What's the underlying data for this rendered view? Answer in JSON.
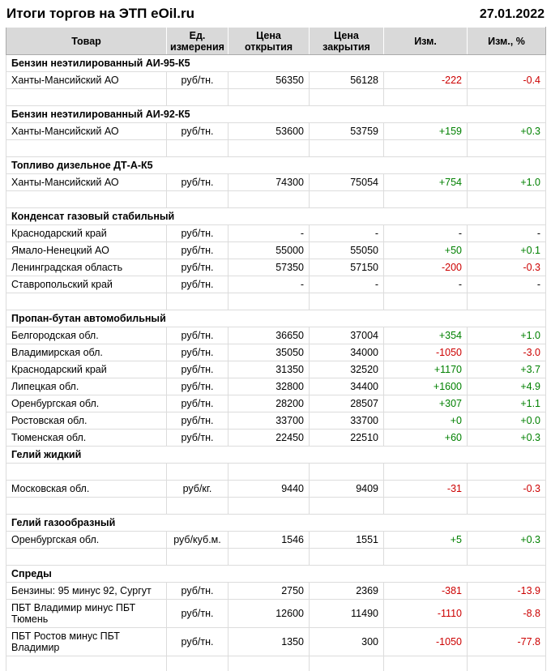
{
  "page": {
    "title": "Итоги торгов на ЭТП eOil.ru",
    "date": "27.01.2022"
  },
  "colors": {
    "positive": "#008000",
    "negative": "#cc0000",
    "header_bg": "#d9d9d9"
  },
  "table": {
    "columns": [
      "Товар",
      "Ед.\nизмерения",
      "Цена\nоткрытия",
      "Цена\nзакрытия",
      "Изм.",
      "Изм., %"
    ],
    "rows": [
      {
        "type": "section",
        "name": "Бензин неэтилированный АИ-95-К5"
      },
      {
        "type": "data",
        "product": "Ханты-Мансийский АО",
        "unit": "руб/тн.",
        "open": "56350",
        "close": "56128",
        "change": "-222",
        "change_pct": "-0.4",
        "direction": "negative"
      },
      {
        "type": "spacer"
      },
      {
        "type": "section",
        "name": "Бензин неэтилированный АИ-92-К5"
      },
      {
        "type": "data",
        "product": "Ханты-Мансийский АО",
        "unit": "руб/тн.",
        "open": "53600",
        "close": "53759",
        "change": "+159",
        "change_pct": "+0.3",
        "direction": "positive"
      },
      {
        "type": "spacer"
      },
      {
        "type": "section",
        "name": "Топливо дизельное ДТ-А-К5"
      },
      {
        "type": "data",
        "product": "Ханты-Мансийский АО",
        "unit": "руб/тн.",
        "open": "74300",
        "close": "75054",
        "change": "+754",
        "change_pct": "+1.0",
        "direction": "positive"
      },
      {
        "type": "spacer"
      },
      {
        "type": "section",
        "name": "Конденсат газовый стабильный"
      },
      {
        "type": "data",
        "product": "Краснодарский край",
        "unit": "руб/тн.",
        "open": "-",
        "close": "-",
        "change": "-",
        "change_pct": "-",
        "direction": "none"
      },
      {
        "type": "data",
        "product": "Ямало-Ненецкий АО",
        "unit": "руб/тн.",
        "open": "55000",
        "close": "55050",
        "change": "+50",
        "change_pct": "+0.1",
        "direction": "positive"
      },
      {
        "type": "data",
        "product": "Ленинградская область",
        "unit": "руб/тн.",
        "open": "57350",
        "close": "57150",
        "change": "-200",
        "change_pct": "-0.3",
        "direction": "negative"
      },
      {
        "type": "data",
        "product": "Ставропольский край",
        "unit": "руб/тн.",
        "open": "-",
        "close": "-",
        "change": "-",
        "change_pct": "-",
        "direction": "none"
      },
      {
        "type": "spacer"
      },
      {
        "type": "section",
        "name": "Пропан-бутан автомобильный"
      },
      {
        "type": "data",
        "product": "Белгородская обл.",
        "unit": "руб/тн.",
        "open": "36650",
        "close": "37004",
        "change": "+354",
        "change_pct": "+1.0",
        "direction": "positive"
      },
      {
        "type": "data",
        "product": "Владимирская обл.",
        "unit": "руб/тн.",
        "open": "35050",
        "close": "34000",
        "change": "-1050",
        "change_pct": "-3.0",
        "direction": "negative"
      },
      {
        "type": "data",
        "product": "Краснодарский край",
        "unit": "руб/тн.",
        "open": "31350",
        "close": "32520",
        "change": "+1170",
        "change_pct": "+3.7",
        "direction": "positive"
      },
      {
        "type": "data",
        "product": "Липецкая обл.",
        "unit": "руб/тн.",
        "open": "32800",
        "close": "34400",
        "change": "+1600",
        "change_pct": "+4.9",
        "direction": "positive"
      },
      {
        "type": "data",
        "product": "Оренбургская обл.",
        "unit": "руб/тн.",
        "open": "28200",
        "close": "28507",
        "change": "+307",
        "change_pct": "+1.1",
        "direction": "positive"
      },
      {
        "type": "data",
        "product": "Ростовская обл.",
        "unit": "руб/тн.",
        "open": "33700",
        "close": "33700",
        "change": "+0",
        "change_pct": "+0.0",
        "direction": "positive"
      },
      {
        "type": "data",
        "product": "Тюменская обл.",
        "unit": "руб/тн.",
        "open": "22450",
        "close": "22510",
        "change": "+60",
        "change_pct": "+0.3",
        "direction": "positive"
      },
      {
        "type": "section",
        "name": "Гелий жидкий"
      },
      {
        "type": "spacer"
      },
      {
        "type": "data",
        "product": "Московская обл.",
        "unit": "руб/кг.",
        "open": "9440",
        "close": "9409",
        "change": "-31",
        "change_pct": "-0.3",
        "direction": "negative"
      },
      {
        "type": "spacer"
      },
      {
        "type": "section",
        "name": "Гелий газообразный"
      },
      {
        "type": "data",
        "product": "Оренбургская обл.",
        "unit": "руб/куб.м.",
        "open": "1546",
        "close": "1551",
        "change": "+5",
        "change_pct": "+0.3",
        "direction": "positive"
      },
      {
        "type": "spacer"
      },
      {
        "type": "section",
        "name": "Спреды"
      },
      {
        "type": "data",
        "product": "Бензины: 95 минус 92, Сургут",
        "unit": "руб/тн.",
        "open": "2750",
        "close": "2369",
        "change": "-381",
        "change_pct": "-13.9",
        "direction": "negative"
      },
      {
        "type": "data",
        "product": "ПБТ Владимир минус ПБТ Тюмень",
        "unit": "руб/тн.",
        "open": "12600",
        "close": "11490",
        "change": "-1110",
        "change_pct": "-8.8",
        "direction": "negative"
      },
      {
        "type": "data",
        "product": "ПБТ Ростов минус ПБТ Владимир",
        "unit": "руб/тн.",
        "open": "1350",
        "close": "300",
        "change": "-1050",
        "change_pct": "-77.8",
        "direction": "negative"
      },
      {
        "type": "spacer"
      }
    ]
  }
}
